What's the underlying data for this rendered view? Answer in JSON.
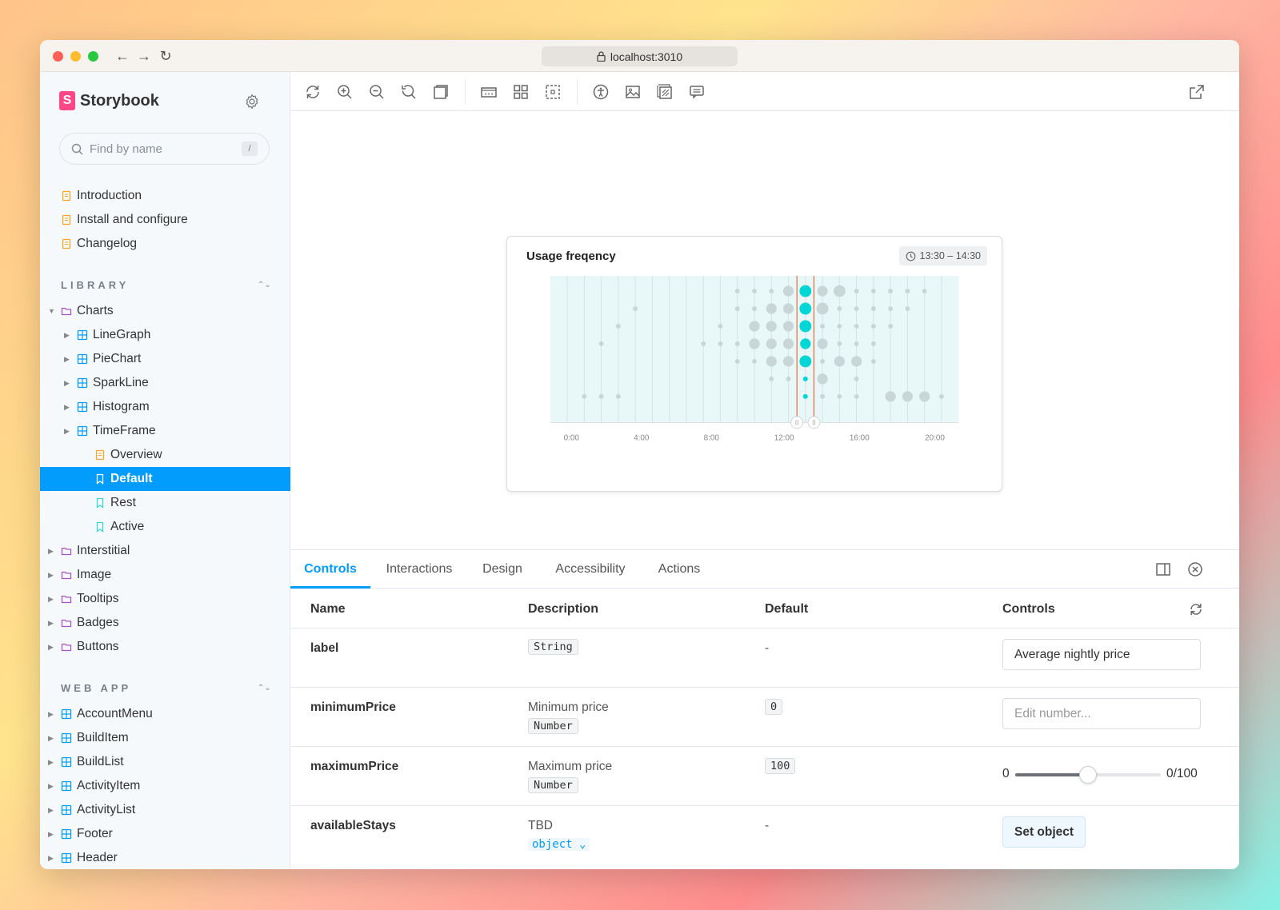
{
  "browser": {
    "url": "localhost:3010"
  },
  "sidebar": {
    "brand": "Storybook",
    "search_placeholder": "Find by name",
    "search_shortcut": "/",
    "docs": [
      {
        "label": "Introduction"
      },
      {
        "label": "Install and configure"
      },
      {
        "label": "Changelog"
      }
    ],
    "library_title": "LIBRARY",
    "library": {
      "charts_label": "Charts",
      "charts_children": [
        {
          "label": "LineGraph"
        },
        {
          "label": "PieChart"
        },
        {
          "label": "SparkLine"
        },
        {
          "label": "Histogram"
        },
        {
          "label": "TimeFrame"
        }
      ],
      "timeframe_children": [
        {
          "label": "Overview"
        },
        {
          "label": "Default"
        },
        {
          "label": "Rest"
        },
        {
          "label": "Active"
        }
      ],
      "folders": [
        {
          "label": "Interstitial"
        },
        {
          "label": "Image"
        },
        {
          "label": "Tooltips"
        },
        {
          "label": "Badges"
        },
        {
          "label": "Buttons"
        }
      ]
    },
    "webapp_title": "WEB APP",
    "webapp": [
      {
        "label": "AccountMenu"
      },
      {
        "label": "BuildItem"
      },
      {
        "label": "BuildList"
      },
      {
        "label": "ActivityItem"
      },
      {
        "label": "ActivityList"
      },
      {
        "label": "Footer"
      },
      {
        "label": "Header"
      }
    ]
  },
  "preview": {
    "card_title": "Usage freqency",
    "time_range": "13:30 – 14:30",
    "colors": {
      "active": "#00d6d6",
      "inactive": "#c9d6d6",
      "marker": "#f06b3a",
      "bg": "#e8f7f7"
    }
  },
  "chart_data": {
    "type": "scatter",
    "x_tick_labels": [
      "0:00",
      "4:00",
      "8:00",
      "12:00",
      "16:00",
      "20:00"
    ],
    "columns": 23,
    "rows": 7,
    "selected_range": [
      13.5,
      14.5
    ],
    "points": [
      [
        1,
        6,
        1
      ],
      [
        2,
        3,
        1
      ],
      [
        2,
        6,
        1
      ],
      [
        3,
        2,
        1
      ],
      [
        3,
        6,
        1
      ],
      [
        4,
        1,
        1
      ],
      [
        8,
        3,
        1
      ],
      [
        9,
        2,
        1
      ],
      [
        9,
        3,
        1
      ],
      [
        10,
        0,
        1
      ],
      [
        10,
        1,
        1
      ],
      [
        10,
        3,
        1
      ],
      [
        10,
        4,
        1
      ],
      [
        11,
        0,
        1
      ],
      [
        11,
        1,
        1
      ],
      [
        11,
        2,
        2
      ],
      [
        11,
        3,
        2
      ],
      [
        11,
        4,
        1
      ],
      [
        12,
        0,
        1
      ],
      [
        12,
        1,
        2
      ],
      [
        12,
        2,
        2
      ],
      [
        12,
        3,
        2
      ],
      [
        12,
        4,
        2
      ],
      [
        12,
        5,
        1
      ],
      [
        13,
        0,
        2
      ],
      [
        13,
        1,
        2
      ],
      [
        13,
        2,
        2
      ],
      [
        13,
        3,
        2
      ],
      [
        13,
        4,
        2
      ],
      [
        13,
        5,
        1
      ],
      [
        14,
        0,
        3
      ],
      [
        14,
        1,
        3
      ],
      [
        14,
        2,
        3
      ],
      [
        14,
        3,
        2
      ],
      [
        14,
        4,
        3
      ],
      [
        14,
        5,
        1
      ],
      [
        14,
        6,
        1
      ],
      [
        15,
        0,
        2
      ],
      [
        15,
        1,
        3
      ],
      [
        15,
        2,
        1
      ],
      [
        15,
        3,
        2
      ],
      [
        15,
        4,
        1
      ],
      [
        15,
        5,
        2
      ],
      [
        15,
        6,
        1
      ],
      [
        16,
        0,
        3
      ],
      [
        16,
        1,
        1
      ],
      [
        16,
        2,
        1
      ],
      [
        16,
        3,
        1
      ],
      [
        16,
        4,
        2
      ],
      [
        16,
        6,
        1
      ],
      [
        17,
        0,
        1
      ],
      [
        17,
        1,
        1
      ],
      [
        17,
        2,
        1
      ],
      [
        17,
        3,
        1
      ],
      [
        17,
        4,
        2
      ],
      [
        17,
        5,
        1
      ],
      [
        17,
        6,
        1
      ],
      [
        18,
        0,
        1
      ],
      [
        18,
        1,
        1
      ],
      [
        18,
        2,
        1
      ],
      [
        18,
        3,
        1
      ],
      [
        18,
        4,
        1
      ],
      [
        19,
        0,
        1
      ],
      [
        19,
        1,
        1
      ],
      [
        19,
        2,
        1
      ],
      [
        19,
        6,
        2
      ],
      [
        20,
        0,
        1
      ],
      [
        20,
        1,
        1
      ],
      [
        20,
        6,
        2
      ],
      [
        21,
        0,
        1
      ],
      [
        21,
        6,
        2
      ],
      [
        22,
        6,
        1
      ]
    ]
  },
  "panel": {
    "tabs": [
      {
        "label": "Controls"
      },
      {
        "label": "Interactions"
      },
      {
        "label": "Design"
      },
      {
        "label": "Accessibility"
      },
      {
        "label": "Actions"
      }
    ],
    "headers": {
      "name": "Name",
      "description": "Description",
      "default": "Default",
      "controls": "Controls"
    },
    "rows": [
      {
        "name": "label",
        "desc": "",
        "type": "String",
        "default": "-",
        "control_value": "Average nightly price"
      },
      {
        "name": "minimumPrice",
        "desc": "Minimum price",
        "type": "Number",
        "default": "0",
        "control_placeholder": "Edit number..."
      },
      {
        "name": "maximumPrice",
        "desc": "Maximum price",
        "type": "Number",
        "default": "100",
        "slider_min": "0",
        "slider_value_label": "0/100",
        "slider_fraction": 0.5
      },
      {
        "name": "availableStays",
        "desc": "TBD",
        "type": "object",
        "default": "-",
        "button": "Set object"
      }
    ]
  }
}
